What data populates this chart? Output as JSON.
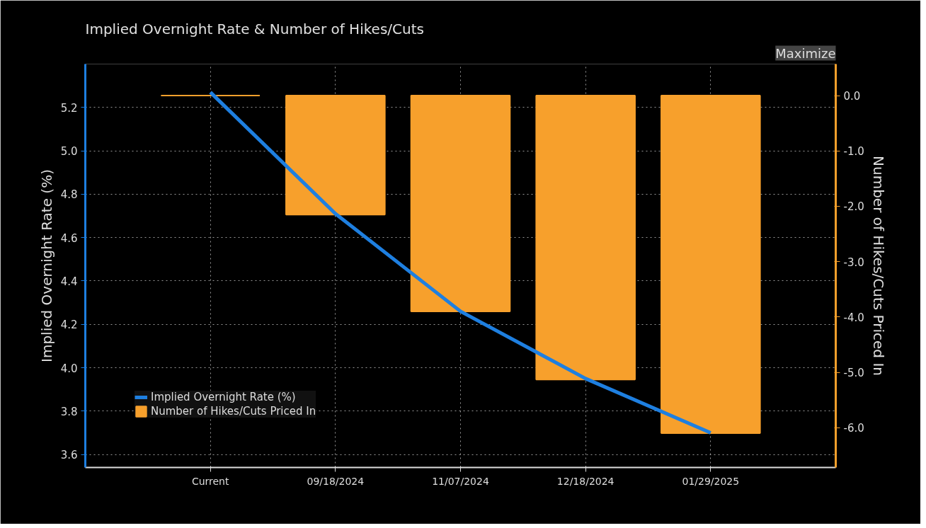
{
  "chart_data": {
    "type": "bar",
    "title": "Implied Overnight Rate & Number of Hikes/Cuts",
    "ylabel": "Implied Overnight Rate (%)",
    "y2label": "Number of Hikes/Cuts Priced In",
    "categories": [
      "Current",
      "09/18/2024",
      "11/07/2024",
      "12/18/2024",
      "01/29/2025"
    ],
    "series": [
      {
        "name": "Implied Overnight Rate (%)",
        "type": "line",
        "color": "#1e7fe0",
        "values": [
          5.27,
          4.71,
          4.26,
          3.95,
          3.7
        ]
      },
      {
        "name": "Number of Hikes/Cuts Priced In",
        "axis": "y2",
        "color": "#f7a02c",
        "values": [
          0.0,
          -2.15,
          -3.9,
          -5.13,
          -6.1
        ]
      }
    ],
    "ylim": [
      3.54,
      5.4
    ],
    "yticks": [
      3.6,
      3.8,
      {
        "value": 4.0,
        "label": "4.0"
      },
      4.2,
      4.4,
      4.6,
      4.8,
      {
        "value": 5.0,
        "label": "5.0"
      },
      5.2
    ],
    "y2lim": [
      -6.72,
      0.57
    ],
    "y2ticks": [
      {
        "value": 0,
        "label": "0.0"
      },
      {
        "value": -1,
        "label": "-1.0"
      },
      {
        "value": -2,
        "label": "-2.0"
      },
      {
        "value": -3,
        "label": "-3.0"
      },
      {
        "value": -4,
        "label": "-4.0"
      },
      {
        "value": -5,
        "label": "-5.0"
      },
      {
        "value": -6,
        "label": "-6.0"
      }
    ],
    "grid": true,
    "legend": "bottom left",
    "marker": "none",
    "line_style": "solid",
    "annotations": [
      "Maximize"
    ]
  }
}
